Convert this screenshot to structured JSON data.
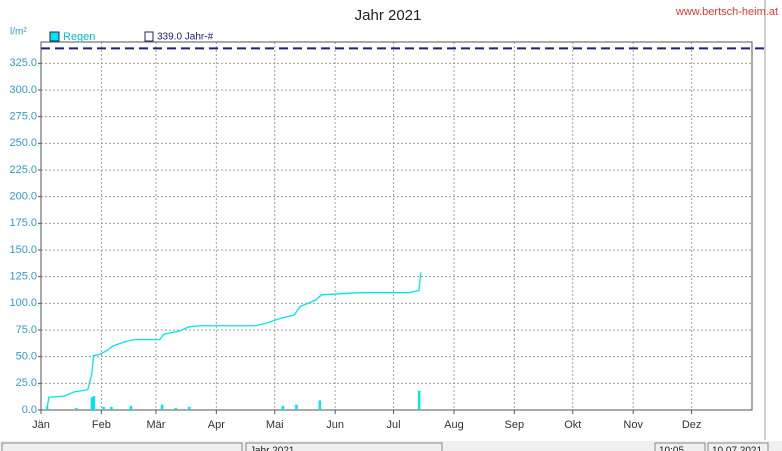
{
  "chart_data": {
    "type": "line",
    "title": "Jahr 2021",
    "site": "www.bertsch-heim.at",
    "y_label": "l/m²",
    "xlim": [
      0,
      365
    ],
    "xticks": [
      {
        "value": 0,
        "label": "Jän"
      },
      {
        "value": 31,
        "label": "Feb"
      },
      {
        "value": 59,
        "label": "Mär"
      },
      {
        "value": 90,
        "label": "Apr"
      },
      {
        "value": 120,
        "label": "Mai"
      },
      {
        "value": 151,
        "label": "Jun"
      },
      {
        "value": 181,
        "label": "Jul"
      },
      {
        "value": 212,
        "label": "Aug"
      },
      {
        "value": 243,
        "label": "Sep"
      },
      {
        "value": 273,
        "label": "Okt"
      },
      {
        "value": 304,
        "label": "Nov"
      },
      {
        "value": 334,
        "label": "Dez"
      }
    ],
    "ylim": [
      0,
      345
    ],
    "yticks": [
      {
        "value": 0,
        "label": "0.0"
      },
      {
        "value": 25,
        "label": "25.0"
      },
      {
        "value": 50,
        "label": "50.0"
      },
      {
        "value": 75,
        "label": "75.0"
      },
      {
        "value": 100,
        "label": "100.0"
      },
      {
        "value": 125,
        "label": "125.0"
      },
      {
        "value": 150,
        "label": "150.0"
      },
      {
        "value": 175,
        "label": "175.0"
      },
      {
        "value": 200,
        "label": "200.0"
      },
      {
        "value": 225,
        "label": "225.0"
      },
      {
        "value": 250,
        "label": "250.0"
      },
      {
        "value": 275,
        "label": "275.0"
      },
      {
        "value": 300,
        "label": "300.0"
      },
      {
        "value": 325,
        "label": "325.0"
      }
    ],
    "grid": true,
    "series": [
      {
        "name": "Regen",
        "color": "#00e5ee",
        "x": [
          3,
          4,
          12,
          17,
          24,
          26,
          27,
          30,
          34,
          37,
          43,
          48,
          61,
          63,
          71,
          76,
          82,
          110,
          115,
          123,
          130,
          133,
          141,
          144,
          164,
          189,
          194,
          195
        ],
        "values": [
          0,
          12,
          13,
          17,
          19,
          33,
          51,
          52,
          56,
          60,
          64,
          66,
          66,
          71,
          74,
          78,
          79,
          79,
          81,
          86,
          89,
          97,
          103,
          108,
          110,
          110,
          112,
          129
        ]
      }
    ],
    "bars": {
      "color": "#00e5ee",
      "x": [
        3,
        18,
        26,
        27,
        32,
        36,
        46,
        62,
        69,
        76,
        124,
        131,
        143,
        194
      ],
      "values": [
        3,
        2,
        12,
        13,
        3,
        3,
        4,
        5,
        2,
        3,
        4,
        5,
        9,
        18
      ]
    },
    "average": {
      "value": 339.0,
      "label": "339.0 Jahr-#",
      "color": "#1a237e"
    },
    "status": [
      "Jahr 2021",
      "10:05",
      "10.07.2021"
    ]
  }
}
